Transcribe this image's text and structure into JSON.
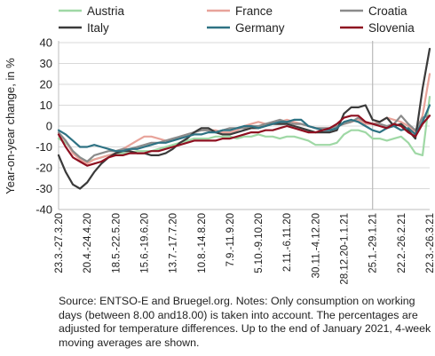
{
  "chart_data": {
    "type": "line",
    "title": "",
    "ylabel": "Year-on-year change, in %",
    "xlabel": "",
    "ylim": [
      -40,
      40
    ],
    "yticks": [
      -40,
      -30,
      -20,
      -10,
      0,
      10,
      20,
      30,
      40
    ],
    "grid": "horizontal",
    "legend_position": "top",
    "reference_line_label": "25.1.-29.1.21",
    "categories": [
      "23.3.-27.3.20",
      "20.4.-24.4.20",
      "18.5.-22.5.20",
      "15.6.-19.6.20",
      "13.7.-17.7.20",
      "10.8.-14.8.20",
      "7.9.-11.9.20",
      "5.10.-9.10.20",
      "2.11.-6.11.20",
      "30.11.-4.12.20",
      "28.12.20-1.1.21",
      "25.1.-29.1.21",
      "22.2.-26.2.21",
      "22.3.-26.3.21"
    ],
    "x": [
      0,
      4,
      8,
      12,
      16,
      20,
      24,
      28,
      32,
      36,
      40,
      44,
      48,
      52
    ],
    "series": [
      {
        "name": "Austria",
        "color": "#9fd8a5",
        "x": [
          0,
          1,
          2,
          3,
          4,
          5,
          6,
          7,
          8,
          9,
          10,
          11,
          12,
          13,
          14,
          15,
          16,
          17,
          18,
          19,
          20,
          21,
          22,
          23,
          24,
          25,
          26,
          27,
          28,
          29,
          30,
          31,
          32,
          33,
          34,
          35,
          36,
          37,
          38,
          39,
          40,
          41,
          42,
          43,
          44,
          45,
          46,
          47,
          48,
          49,
          50,
          51,
          52
        ],
        "values": [
          -6,
          -8,
          -12,
          -15,
          -17,
          -16,
          -15,
          -14,
          -13,
          -13,
          -13,
          -12,
          -12,
          -12,
          -11,
          -10,
          -9,
          -8,
          -7,
          -6,
          -6,
          -6,
          -5,
          -5,
          -5,
          -6,
          -5,
          -5,
          -4,
          -5,
          -5,
          -6,
          -5,
          -5,
          -6,
          -7,
          -9,
          -9,
          -9,
          -8,
          -4,
          -2,
          -2,
          -3,
          -6,
          -6,
          -7,
          -6,
          -5,
          -8,
          -13,
          -14,
          14
        ]
      },
      {
        "name": "France",
        "color": "#e8a39a",
        "x": [
          0,
          1,
          2,
          3,
          4,
          5,
          6,
          7,
          8,
          9,
          10,
          11,
          12,
          13,
          14,
          15,
          16,
          17,
          18,
          19,
          20,
          21,
          22,
          23,
          24,
          25,
          26,
          27,
          28,
          29,
          30,
          31,
          32,
          33,
          34,
          35,
          36,
          37,
          38,
          39,
          40,
          41,
          42,
          43,
          44,
          45,
          46,
          47,
          48,
          49,
          50,
          51,
          52
        ],
        "values": [
          -4,
          -7,
          -13,
          -16,
          -18,
          -16,
          -15,
          -14,
          -13,
          -11,
          -9,
          -7,
          -5,
          -5,
          -6,
          -7,
          -7,
          -5,
          -4,
          -3,
          -2,
          -2,
          -2,
          -3,
          -3,
          -2,
          0,
          1,
          2,
          1,
          1,
          2,
          3,
          2,
          1,
          0,
          -1,
          -2,
          -1,
          0,
          1,
          2,
          3,
          1,
          1,
          2,
          4,
          3,
          2,
          0,
          -3,
          5,
          25
        ]
      },
      {
        "name": "Croatia",
        "color": "#8b8b8b",
        "x": [
          0,
          1,
          2,
          3,
          4,
          5,
          6,
          7,
          8,
          9,
          10,
          11,
          12,
          13,
          14,
          15,
          16,
          17,
          18,
          19,
          20,
          21,
          22,
          23,
          24,
          25,
          26,
          27,
          28,
          29,
          30,
          31,
          32,
          33,
          34,
          35,
          36,
          37,
          38,
          39,
          40,
          41,
          42,
          43,
          44,
          45,
          46,
          47,
          48,
          49,
          50,
          51,
          52
        ],
        "values": [
          -3,
          -7,
          -12,
          -15,
          -17,
          -14,
          -13,
          -12,
          -12,
          -11,
          -11,
          -10,
          -9,
          -8,
          -8,
          -7,
          -6,
          -5,
          -4,
          -3,
          -2,
          -2,
          -3,
          -2,
          -1,
          -1,
          -1,
          0,
          0,
          1,
          2,
          3,
          2,
          1,
          1,
          0,
          -1,
          -1,
          -1,
          0,
          1,
          2,
          4,
          2,
          1,
          1,
          0,
          1,
          5,
          1,
          -2,
          4,
          5
        ]
      },
      {
        "name": "Italy",
        "color": "#3a3a3a",
        "x": [
          0,
          1,
          2,
          3,
          4,
          5,
          6,
          7,
          8,
          9,
          10,
          11,
          12,
          13,
          14,
          15,
          16,
          17,
          18,
          19,
          20,
          21,
          22,
          23,
          24,
          25,
          26,
          27,
          28,
          29,
          30,
          31,
          32,
          33,
          34,
          35,
          36,
          37,
          38,
          39,
          40,
          41,
          42,
          43,
          44,
          45,
          46,
          47,
          48,
          49,
          50,
          51,
          52
        ],
        "values": [
          -14,
          -22,
          -28,
          -30,
          -27,
          -22,
          -18,
          -15,
          -13,
          -12,
          -12,
          -13,
          -13,
          -14,
          -14,
          -13,
          -11,
          -8,
          -6,
          -3,
          -1,
          -1,
          -3,
          -4,
          -4,
          -3,
          -2,
          -1,
          -1,
          0,
          1,
          1,
          1,
          0,
          -1,
          -2,
          -3,
          -3,
          -3,
          -2,
          6,
          9,
          9,
          10,
          3,
          2,
          4,
          0,
          1,
          -2,
          -6,
          18,
          37
        ]
      },
      {
        "name": "Germany",
        "color": "#2e7283",
        "x": [
          0,
          1,
          2,
          3,
          4,
          5,
          6,
          7,
          8,
          9,
          10,
          11,
          12,
          13,
          14,
          15,
          16,
          17,
          18,
          19,
          20,
          21,
          22,
          23,
          24,
          25,
          26,
          27,
          28,
          29,
          30,
          31,
          32,
          33,
          34,
          35,
          36,
          37,
          38,
          39,
          40,
          41,
          42,
          43,
          44,
          45,
          46,
          47,
          48,
          49,
          50,
          51,
          52
        ],
        "values": [
          -2,
          -4,
          -7,
          -10,
          -10,
          -9,
          -10,
          -11,
          -12,
          -12,
          -11,
          -11,
          -10,
          -9,
          -8,
          -8,
          -7,
          -6,
          -5,
          -4,
          -4,
          -3,
          -3,
          -2,
          -2,
          -1,
          0,
          0,
          -1,
          0,
          1,
          2,
          2,
          3,
          3,
          0,
          -1,
          -2,
          -2,
          -1,
          2,
          3,
          2,
          0,
          -2,
          -3,
          -1,
          0,
          -2,
          -1,
          -4,
          2,
          10
        ]
      },
      {
        "name": "Slovenia",
        "color": "#8e1020",
        "x": [
          0,
          1,
          2,
          3,
          4,
          5,
          6,
          7,
          8,
          9,
          10,
          11,
          12,
          13,
          14,
          15,
          16,
          17,
          18,
          19,
          20,
          21,
          22,
          23,
          24,
          25,
          26,
          27,
          28,
          29,
          30,
          31,
          32,
          33,
          34,
          35,
          36,
          37,
          38,
          39,
          40,
          41,
          42,
          43,
          44,
          45,
          46,
          47,
          48,
          49,
          50,
          51,
          52
        ],
        "values": [
          -4,
          -10,
          -15,
          -17,
          -19,
          -18,
          -17,
          -15,
          -14,
          -14,
          -13,
          -13,
          -13,
          -12,
          -12,
          -11,
          -10,
          -9,
          -8,
          -7,
          -7,
          -7,
          -7,
          -6,
          -6,
          -5,
          -4,
          -3,
          -3,
          -2,
          -2,
          -1,
          0,
          -1,
          -2,
          -3,
          -3,
          -2,
          -1,
          1,
          4,
          5,
          5,
          2,
          1,
          0,
          -1,
          1,
          0,
          -3,
          -5,
          1,
          5
        ]
      }
    ]
  },
  "source_note": "Source: ENTSO-E and Bruegel.org. Notes: Only consumption on working days (between 8.00 and18.00) is taken into account. The percentages are adjusted for temperature differences. Up to the end of January 2021, 4-week moving averages are shown."
}
